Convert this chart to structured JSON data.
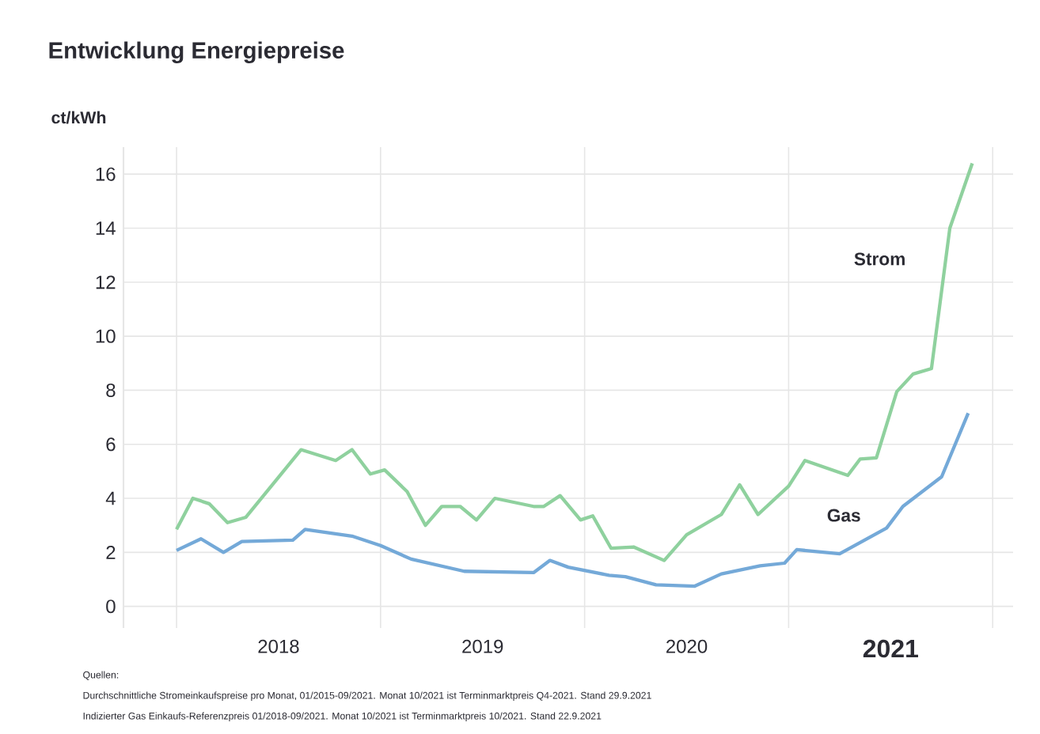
{
  "chart_data": {
    "type": "line",
    "title": "Entwicklung Energiepreise",
    "ylabel": "ct/kWh",
    "xlim": [
      2017.74,
      2022.1
    ],
    "ylim": [
      -0.8,
      17
    ],
    "xticks": [
      {
        "value": 2018,
        "label": null
      },
      {
        "value": 2018.5,
        "label": "2018"
      },
      {
        "value": 2019,
        "label": null
      },
      {
        "value": 2019.5,
        "label": "2019"
      },
      {
        "value": 2020,
        "label": null
      },
      {
        "value": 2020.5,
        "label": "2020"
      },
      {
        "value": 2021,
        "label": null
      },
      {
        "value": 2021.5,
        "label": "2021"
      },
      {
        "value": 2022,
        "label": null
      }
    ],
    "yticks": [
      0,
      2,
      4,
      6,
      8,
      10,
      12,
      14,
      16
    ],
    "grid": true,
    "legend": false,
    "marker": "none",
    "line_style": "solid",
    "series": [
      {
        "name": "Strom",
        "color": "#8fd19e",
        "x": [
          2018.0,
          2018.08,
          2018.16,
          2018.25,
          2018.34,
          2018.61,
          2018.78,
          2018.86,
          2018.95,
          2019.02,
          2019.13,
          2019.22,
          2019.3,
          2019.39,
          2019.47,
          2019.56,
          2019.75,
          2019.8,
          2019.88,
          2019.98,
          2020.04,
          2020.13,
          2020.24,
          2020.39,
          2020.5,
          2020.67,
          2020.76,
          2020.85,
          2021.0,
          2021.08,
          2021.29,
          2021.35,
          2021.43,
          2021.53,
          2021.61,
          2021.7,
          2021.79,
          2021.9
        ],
        "values": [
          2.85,
          4.0,
          3.8,
          3.1,
          3.3,
          5.8,
          5.4,
          5.8,
          4.9,
          5.05,
          4.25,
          3.0,
          3.7,
          3.7,
          3.2,
          4.0,
          3.7,
          3.7,
          4.1,
          3.2,
          3.35,
          2.15,
          2.2,
          1.7,
          2.65,
          3.4,
          4.5,
          3.4,
          4.45,
          5.4,
          4.85,
          5.45,
          5.5,
          7.95,
          8.6,
          8.8,
          14.0,
          16.4
        ]
      },
      {
        "name": "Gas",
        "color": "#74a9d8",
        "x": [
          2018.0,
          2018.12,
          2018.23,
          2018.32,
          2018.57,
          2018.63,
          2018.86,
          2019.0,
          2019.15,
          2019.41,
          2019.75,
          2019.83,
          2019.92,
          2020.12,
          2020.2,
          2020.35,
          2020.54,
          2020.67,
          2020.86,
          2020.98,
          2021.04,
          2021.25,
          2021.48,
          2021.56,
          2021.75,
          2021.88
        ],
        "values": [
          2.07,
          2.5,
          2.0,
          2.4,
          2.45,
          2.85,
          2.6,
          2.25,
          1.75,
          1.3,
          1.25,
          1.7,
          1.45,
          1.15,
          1.1,
          0.8,
          0.75,
          1.2,
          1.5,
          1.6,
          2.1,
          1.95,
          2.9,
          3.7,
          4.8,
          7.15
        ]
      }
    ],
    "annotations": [
      "Quellen:",
      "Durchschnittliche Stromeinkaufspreise pro Monat, 01/2015-09/2021. Monat 10/2021 ist Terminmarktpreis Q4-2021. Stand 29.9.2021",
      "Indizierter Gas Einkaufs-Referenzpreis 01/2018-09/2021. Monat 10/2021 ist Terminmarktpreis 10/2021. Stand 22.9.2021"
    ]
  }
}
